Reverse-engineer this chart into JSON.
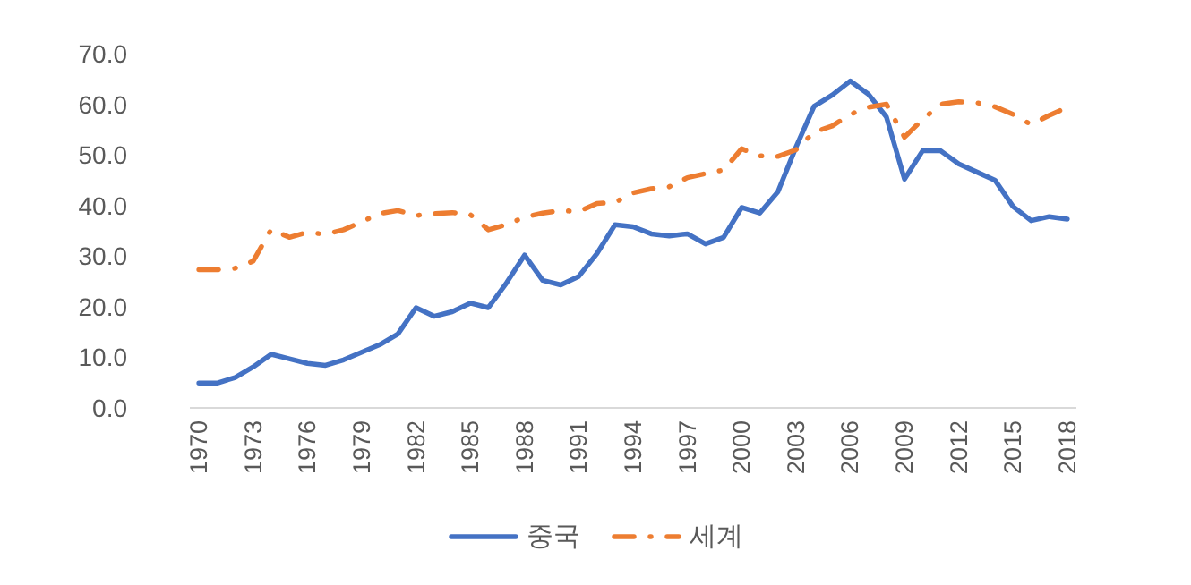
{
  "chart_data": {
    "type": "line",
    "x": [
      1970,
      1971,
      1972,
      1973,
      1974,
      1975,
      1976,
      1977,
      1978,
      1979,
      1980,
      1981,
      1982,
      1983,
      1984,
      1985,
      1986,
      1987,
      1988,
      1989,
      1990,
      1991,
      1992,
      1993,
      1994,
      1995,
      1996,
      1997,
      1998,
      1999,
      2000,
      2001,
      2002,
      2003,
      2004,
      2005,
      2006,
      2007,
      2008,
      2009,
      2010,
      2011,
      2012,
      2013,
      2014,
      2015,
      2016,
      2017,
      2018
    ],
    "series": [
      {
        "name": "중국",
        "color": "#4472c4",
        "line_style": "solid",
        "values": [
          4.9,
          4.9,
          6.0,
          8.1,
          10.6,
          9.7,
          8.8,
          8.4,
          9.5,
          11.0,
          12.5,
          14.6,
          19.8,
          18.1,
          19.0,
          20.7,
          19.8,
          24.7,
          30.2,
          25.2,
          24.3,
          26.0,
          30.5,
          36.2,
          35.8,
          34.4,
          34.0,
          34.4,
          32.4,
          33.7,
          39.6,
          38.5,
          42.7,
          51.5,
          59.6,
          61.8,
          64.6,
          62.0,
          57.5,
          45.2,
          50.8,
          50.8,
          48.2,
          46.6,
          45.0,
          39.8,
          37.0,
          37.8,
          37.3
        ]
      },
      {
        "name": "세계",
        "color": "#ed7d31",
        "line_style": "dashdot",
        "values": [
          27.3,
          27.3,
          27.6,
          29.0,
          35.3,
          33.7,
          34.7,
          34.3,
          35.2,
          36.8,
          38.4,
          39.0,
          38.0,
          38.4,
          38.6,
          38.2,
          35.2,
          36.2,
          37.7,
          38.5,
          39.0,
          38.8,
          40.4,
          40.6,
          42.5,
          43.3,
          43.7,
          45.5,
          46.3,
          47.0,
          51.2,
          49.8,
          49.7,
          51.0,
          54.5,
          55.7,
          58.0,
          59.4,
          60.0,
          53.5,
          57.0,
          60.0,
          60.5,
          60.3,
          59.5,
          58.0,
          56.0,
          57.8,
          59.4
        ]
      }
    ],
    "xlim": [
      1969.5,
      2018.5
    ],
    "xticks": [
      1970,
      1973,
      1976,
      1979,
      1982,
      1985,
      1988,
      1991,
      1994,
      1997,
      2000,
      2003,
      2006,
      2009,
      2012,
      2015,
      2018
    ],
    "ylim": [
      0,
      70
    ],
    "yticks": [
      {
        "value": 0,
        "label": "0.0"
      },
      {
        "value": 10,
        "label": "10.0"
      },
      {
        "value": 20,
        "label": "20.0"
      },
      {
        "value": 30,
        "label": "30.0"
      },
      {
        "value": 40,
        "label": "40.0"
      },
      {
        "value": 50,
        "label": "50.0"
      },
      {
        "value": 60,
        "label": "60.0"
      },
      {
        "value": 70,
        "label": "70.0"
      }
    ],
    "legend": "bottom"
  }
}
